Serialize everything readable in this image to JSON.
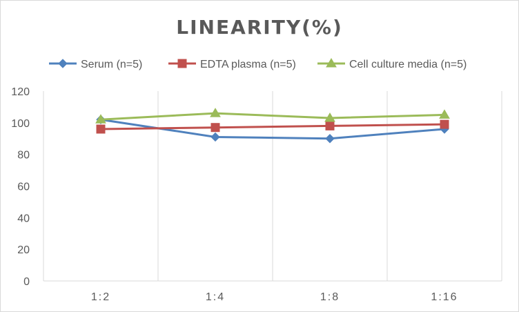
{
  "chart_data": {
    "type": "line",
    "title": "LINEARITY(%)",
    "categories": [
      "1:2",
      "1:4",
      "1:8",
      "1:16"
    ],
    "ylim": [
      0,
      120
    ],
    "yticks": [
      0,
      20,
      40,
      60,
      80,
      100,
      120
    ],
    "grid": "vertical",
    "legend_position": "top",
    "series": [
      {
        "name": "Serum (n=5)",
        "values": [
          102,
          91,
          90,
          96
        ],
        "color": "#4f81bd",
        "marker": "diamond"
      },
      {
        "name": "EDTA plasma (n=5)",
        "values": [
          96,
          97,
          98,
          99
        ],
        "color": "#c0504d",
        "marker": "square"
      },
      {
        "name": "Cell culture media (n=5)",
        "values": [
          102,
          106,
          103,
          105
        ],
        "color": "#9bbb59",
        "marker": "triangle"
      }
    ]
  }
}
